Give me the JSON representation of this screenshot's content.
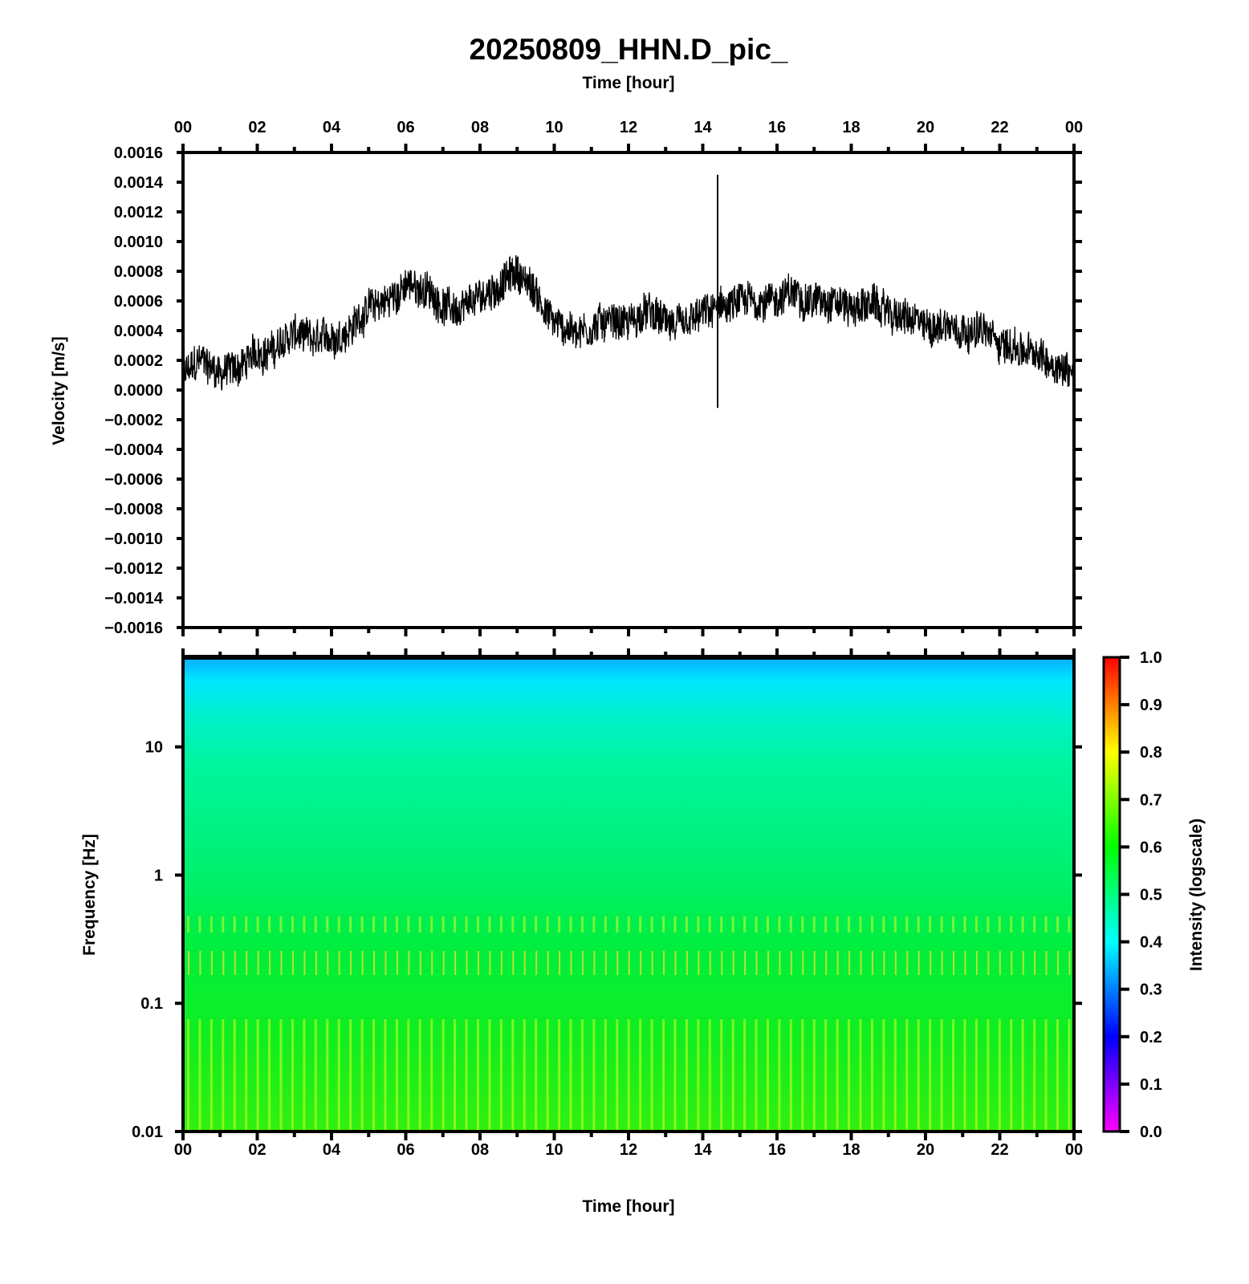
{
  "chart_data": [
    {
      "type": "line",
      "title": "20250809_HHN.D_pic_",
      "xlabel": "Time [hour]",
      "ylabel": "Velocity [m/s]",
      "xlim": [
        0,
        24
      ],
      "ylim": [
        -0.0016,
        0.0016
      ],
      "x_ticks": [
        "00",
        "02",
        "04",
        "06",
        "08",
        "10",
        "12",
        "14",
        "16",
        "18",
        "20",
        "22",
        "00"
      ],
      "y_ticks": [
        "0.0016",
        "0.0014",
        "0.0012",
        "0.0010",
        "0.0008",
        "0.0006",
        "0.0004",
        "0.0002",
        "0.0000",
        "−0.0002",
        "−0.0004",
        "−0.0006",
        "−0.0008",
        "−0.0010",
        "−0.0012",
        "−0.0014",
        "−0.0016"
      ],
      "grid": false,
      "line_color": "#000000",
      "series": [
        {
          "x": [
            0,
            0.5,
            1,
            1.5,
            2,
            2.5,
            3,
            3.5,
            4,
            4.5,
            5,
            5.5,
            6,
            6.5,
            7,
            7.5,
            8,
            8.5,
            9,
            9.5,
            10,
            10.5,
            11,
            11.5,
            12,
            12.5,
            13,
            13.5,
            14,
            14.5,
            15,
            15.5,
            16,
            16.5,
            17,
            17.5,
            18,
            18.5,
            19,
            19.5,
            20,
            20.5,
            21,
            21.5,
            22,
            22.5,
            23,
            23.5,
            24
          ],
          "values": [
            0.0001,
            0.0002,
            0.00012,
            0.00015,
            0.00025,
            0.00028,
            0.00038,
            0.00032,
            0.00035,
            0.00042,
            0.00055,
            0.0006,
            0.0007,
            0.00068,
            0.00058,
            0.00052,
            0.00062,
            0.0007,
            0.0008,
            0.00065,
            0.00045,
            0.0004,
            0.00042,
            0.00048,
            0.00045,
            0.00052,
            0.00045,
            0.00042,
            0.0005,
            0.00055,
            0.00058,
            0.0006,
            0.00062,
            0.00065,
            0.0006,
            0.00062,
            0.00055,
            0.00058,
            0.00052,
            0.00048,
            0.00042,
            0.00045,
            0.00042,
            0.0004,
            0.00032,
            0.00028,
            0.00022,
            0.00018,
            0.00012
          ],
          "spikes": [
            {
              "x": 14.4,
              "max": 0.00145,
              "min": -0.00012
            }
          ]
        }
      ]
    },
    {
      "type": "heatmap",
      "xlabel": "Time [hour]",
      "ylabel": "Frequency [Hz]",
      "xlim": [
        0,
        24
      ],
      "ylim": [
        0.01,
        50
      ],
      "y_scale": "log",
      "x_ticks": [
        "00",
        "02",
        "04",
        "06",
        "08",
        "10",
        "12",
        "14",
        "16",
        "18",
        "20",
        "22",
        "00"
      ],
      "y_ticks": [
        {
          "value": 10,
          "label": "10"
        },
        {
          "value": 1,
          "label": "1"
        },
        {
          "value": 0.1,
          "label": "0.1"
        },
        {
          "value": 0.01,
          "label": "0.01"
        }
      ],
      "colorbar": {
        "label": "Intensity (logscale)",
        "range": [
          0.0,
          1.0
        ],
        "ticks": [
          "1.0",
          "0.9",
          "0.8",
          "0.7",
          "0.6",
          "0.5",
          "0.4",
          "0.3",
          "0.2",
          "0.1",
          "0.0"
        ],
        "colors": [
          "#ff00ff",
          "#0000ff",
          "#00ffff",
          "#00ff00",
          "#ffff00",
          "#ff0000"
        ]
      },
      "intensity_profile": [
        {
          "freq": 50,
          "value": 0.36
        },
        {
          "freq": 30,
          "value": 0.4
        },
        {
          "freq": 10,
          "value": 0.46
        },
        {
          "freq": 1,
          "value": 0.52
        },
        {
          "freq": 0.2,
          "value": 0.58
        },
        {
          "freq": 0.01,
          "value": 0.62
        }
      ]
    }
  ]
}
